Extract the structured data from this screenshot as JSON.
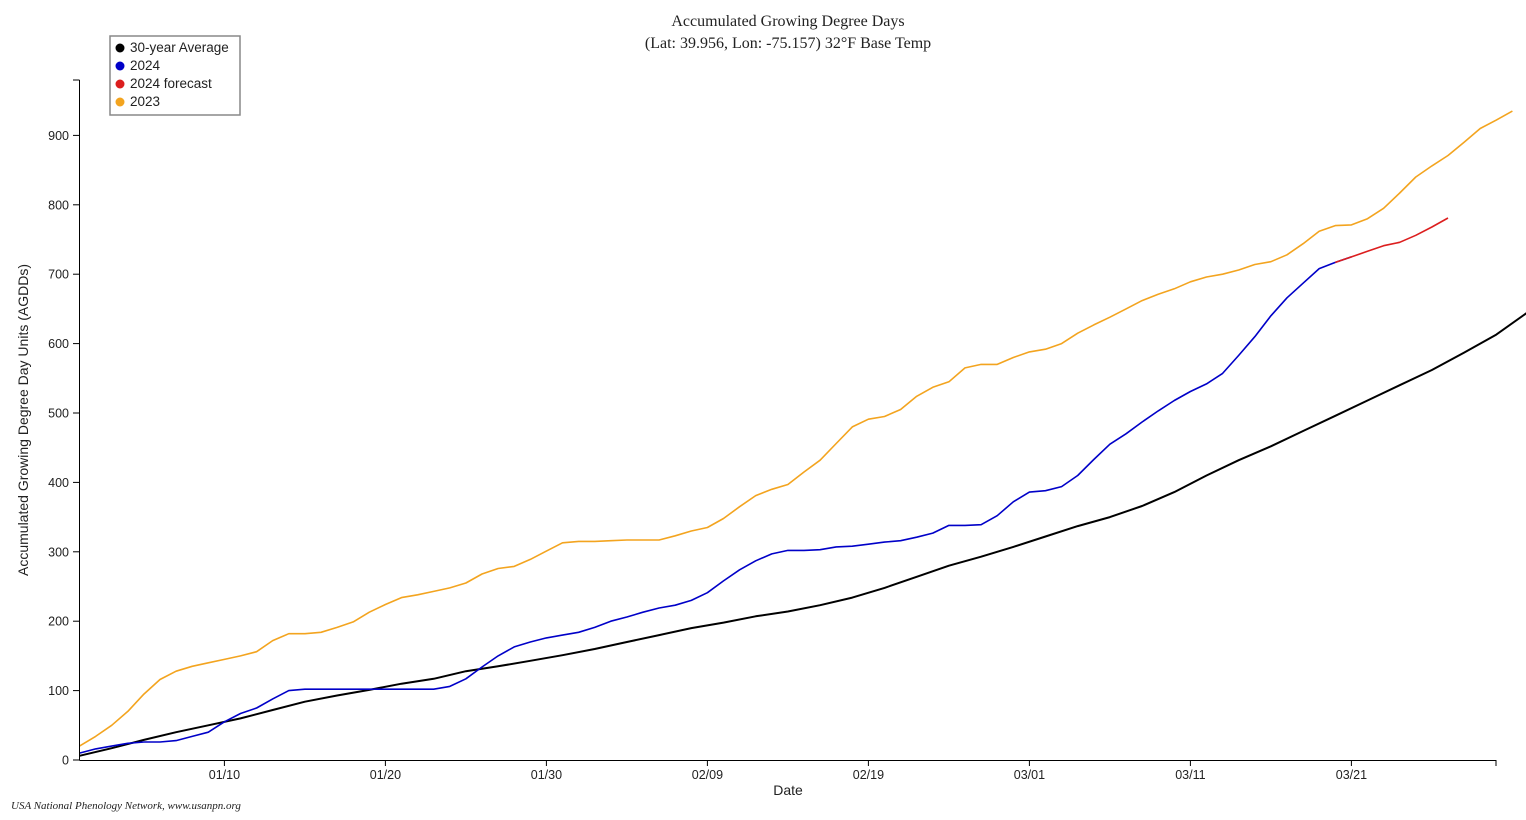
{
  "chart_data": {
    "type": "line",
    "title": "Accumulated Growing Degree Days",
    "subtitle": "(Lat: 39.956, Lon: -75.157) 32°F Base Temp",
    "xlabel": "Date",
    "ylabel": "Accumulated Growing Degree Day Units (AGDDs)",
    "x_tick_labels": [
      "01/10",
      "01/20",
      "01/30",
      "02/09",
      "02/19",
      "03/01",
      "03/11",
      "03/21"
    ],
    "x_tick_days": [
      10,
      20,
      30,
      40,
      50,
      60,
      70,
      80
    ],
    "xlim": [
      1,
      89
    ],
    "ylim": [
      0,
      980
    ],
    "y_ticks": [
      0,
      100,
      200,
      300,
      400,
      500,
      600,
      700,
      800,
      900
    ],
    "grid": false,
    "legend_position": "top-left",
    "series": [
      {
        "name": "30-year Average",
        "color": "#000000",
        "points": [
          [
            1,
            6
          ],
          [
            3,
            17
          ],
          [
            5,
            29
          ],
          [
            7,
            40
          ],
          [
            9,
            50
          ],
          [
            11,
            60
          ],
          [
            13,
            72
          ],
          [
            15,
            84
          ],
          [
            17,
            93
          ],
          [
            19,
            101
          ],
          [
            21,
            110
          ],
          [
            23,
            117
          ],
          [
            25,
            128
          ],
          [
            27,
            135
          ],
          [
            29,
            143
          ],
          [
            31,
            151
          ],
          [
            33,
            160
          ],
          [
            35,
            170
          ],
          [
            37,
            180
          ],
          [
            39,
            190
          ],
          [
            41,
            198
          ],
          [
            43,
            207
          ],
          [
            45,
            214
          ],
          [
            47,
            223
          ],
          [
            49,
            234
          ],
          [
            51,
            248
          ],
          [
            53,
            264
          ],
          [
            55,
            280
          ],
          [
            57,
            293
          ],
          [
            59,
            307
          ],
          [
            61,
            322
          ],
          [
            63,
            337
          ],
          [
            65,
            350
          ],
          [
            67,
            366
          ],
          [
            69,
            386
          ],
          [
            71,
            410
          ],
          [
            73,
            432
          ],
          [
            75,
            452
          ],
          [
            77,
            474
          ],
          [
            79,
            496
          ],
          [
            81,
            518
          ],
          [
            83,
            540
          ],
          [
            85,
            562
          ],
          [
            87,
            587
          ],
          [
            89,
            613
          ],
          [
            91,
            646
          ],
          [
            92,
            656
          ]
        ]
      },
      {
        "name": "2024",
        "color": "#0000c8",
        "points": [
          [
            1,
            10
          ],
          [
            2,
            16
          ],
          [
            3,
            20
          ],
          [
            4,
            24
          ],
          [
            5,
            26
          ],
          [
            6,
            26
          ],
          [
            7,
            28
          ],
          [
            8,
            34
          ],
          [
            9,
            40
          ],
          [
            10,
            55
          ],
          [
            11,
            67
          ],
          [
            12,
            75
          ],
          [
            13,
            88
          ],
          [
            14,
            100
          ],
          [
            15,
            102
          ],
          [
            16,
            102
          ],
          [
            17,
            102
          ],
          [
            18,
            102
          ],
          [
            19,
            102
          ],
          [
            20,
            102
          ],
          [
            21,
            102
          ],
          [
            22,
            102
          ],
          [
            23,
            102
          ],
          [
            24,
            106
          ],
          [
            25,
            117
          ],
          [
            26,
            134
          ],
          [
            27,
            150
          ],
          [
            28,
            163
          ],
          [
            29,
            170
          ],
          [
            30,
            176
          ],
          [
            31,
            180
          ],
          [
            32,
            184
          ],
          [
            33,
            191
          ],
          [
            34,
            200
          ],
          [
            35,
            206
          ],
          [
            36,
            213
          ],
          [
            37,
            219
          ],
          [
            38,
            223
          ],
          [
            39,
            230
          ],
          [
            40,
            241
          ],
          [
            41,
            258
          ],
          [
            42,
            274
          ],
          [
            43,
            287
          ],
          [
            44,
            297
          ],
          [
            45,
            302
          ],
          [
            46,
            302
          ],
          [
            47,
            303
          ],
          [
            48,
            307
          ],
          [
            49,
            308
          ],
          [
            50,
            311
          ],
          [
            51,
            314
          ],
          [
            52,
            316
          ],
          [
            53,
            321
          ],
          [
            54,
            327
          ],
          [
            55,
            338
          ],
          [
            56,
            338
          ],
          [
            57,
            339
          ],
          [
            58,
            352
          ],
          [
            59,
            372
          ],
          [
            60,
            386
          ],
          [
            61,
            388
          ],
          [
            62,
            394
          ],
          [
            63,
            410
          ],
          [
            64,
            433
          ],
          [
            65,
            455
          ],
          [
            66,
            470
          ],
          [
            67,
            487
          ],
          [
            68,
            503
          ],
          [
            69,
            518
          ],
          [
            70,
            531
          ],
          [
            71,
            542
          ],
          [
            72,
            557
          ],
          [
            73,
            583
          ],
          [
            74,
            610
          ],
          [
            75,
            640
          ],
          [
            76,
            666
          ],
          [
            77,
            687
          ],
          [
            78,
            708
          ],
          [
            79,
            717
          ],
          [
            80,
            725
          ]
        ]
      },
      {
        "name": "2024 forecast",
        "color": "#dc1e1e",
        "points": [
          [
            79,
            717
          ],
          [
            80,
            725
          ],
          [
            81,
            733
          ],
          [
            82,
            741
          ],
          [
            83,
            746
          ],
          [
            84,
            756
          ],
          [
            85,
            768
          ],
          [
            86,
            781
          ]
        ]
      },
      {
        "name": "2023",
        "color": "#f3a41f",
        "points": [
          [
            1,
            20
          ],
          [
            2,
            34
          ],
          [
            3,
            50
          ],
          [
            4,
            70
          ],
          [
            5,
            95
          ],
          [
            6,
            116
          ],
          [
            7,
            128
          ],
          [
            8,
            135
          ],
          [
            9,
            140
          ],
          [
            10,
            145
          ],
          [
            11,
            150
          ],
          [
            12,
            156
          ],
          [
            13,
            172
          ],
          [
            14,
            182
          ],
          [
            15,
            182
          ],
          [
            16,
            184
          ],
          [
            17,
            191
          ],
          [
            18,
            199
          ],
          [
            19,
            213
          ],
          [
            20,
            224
          ],
          [
            21,
            234
          ],
          [
            22,
            238
          ],
          [
            23,
            243
          ],
          [
            24,
            248
          ],
          [
            25,
            255
          ],
          [
            26,
            268
          ],
          [
            27,
            276
          ],
          [
            28,
            279
          ],
          [
            29,
            289
          ],
          [
            30,
            301
          ],
          [
            31,
            313
          ],
          [
            32,
            315
          ],
          [
            33,
            315
          ],
          [
            34,
            316
          ],
          [
            35,
            317
          ],
          [
            36,
            317
          ],
          [
            37,
            317
          ],
          [
            38,
            323
          ],
          [
            39,
            330
          ],
          [
            40,
            335
          ],
          [
            41,
            348
          ],
          [
            42,
            365
          ],
          [
            43,
            381
          ],
          [
            44,
            390
          ],
          [
            45,
            397
          ],
          [
            46,
            415
          ],
          [
            47,
            432
          ],
          [
            48,
            456
          ],
          [
            49,
            480
          ],
          [
            50,
            491
          ],
          [
            51,
            495
          ],
          [
            52,
            505
          ],
          [
            53,
            524
          ],
          [
            54,
            537
          ],
          [
            55,
            545
          ],
          [
            56,
            565
          ],
          [
            57,
            570
          ],
          [
            58,
            570
          ],
          [
            59,
            580
          ],
          [
            60,
            588
          ],
          [
            61,
            592
          ],
          [
            62,
            600
          ],
          [
            63,
            615
          ],
          [
            64,
            627
          ],
          [
            65,
            638
          ],
          [
            66,
            650
          ],
          [
            67,
            662
          ],
          [
            68,
            671
          ],
          [
            69,
            679
          ],
          [
            70,
            689
          ],
          [
            71,
            696
          ],
          [
            72,
            700
          ],
          [
            73,
            706
          ],
          [
            74,
            714
          ],
          [
            75,
            718
          ],
          [
            76,
            728
          ],
          [
            77,
            744
          ],
          [
            78,
            762
          ],
          [
            79,
            770
          ],
          [
            80,
            771
          ],
          [
            81,
            780
          ],
          [
            82,
            795
          ],
          [
            83,
            817
          ],
          [
            84,
            840
          ],
          [
            85,
            856
          ],
          [
            86,
            871
          ],
          [
            87,
            890
          ],
          [
            88,
            910
          ],
          [
            89,
            922
          ],
          [
            90,
            935
          ]
        ]
      }
    ]
  },
  "credit": "USA National Phenology Network, www.usanpn.org"
}
